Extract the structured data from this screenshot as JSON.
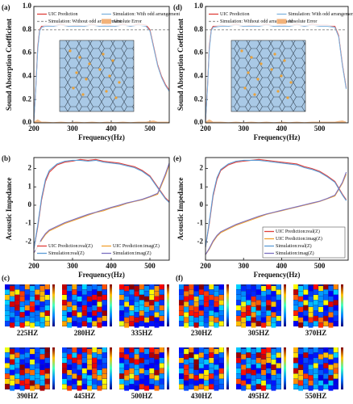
{
  "chart_data": [
    {
      "type": "line",
      "panel": "(a)",
      "x_label": "Frequency(Hz)",
      "y_label": "Sound Absorption Coefficient",
      "x": [
        200,
        205,
        210,
        215,
        220,
        230,
        250,
        270,
        290,
        310,
        330,
        350,
        370,
        390,
        410,
        430,
        450,
        470,
        490,
        500,
        510,
        520,
        530,
        540,
        550
      ],
      "xlim": [
        200,
        550
      ],
      "xticks": [
        200,
        300,
        400,
        500
      ],
      "ylim": [
        0,
        1.0
      ],
      "yticks": [
        {
          "value": 0,
          "label": "0.0"
        },
        0.2,
        0.4,
        0.6,
        0.8,
        {
          "value": 1,
          "label": "1.0"
        }
      ],
      "legend": "upper center",
      "legend_columns": 2,
      "series": [
        {
          "name": "UIC Prediction",
          "color": "#e0403a",
          "style": "solid",
          "values": [
            0.02,
            0.3,
            0.65,
            0.8,
            0.83,
            0.84,
            0.83,
            0.85,
            0.83,
            0.84,
            0.83,
            0.85,
            0.83,
            0.84,
            0.83,
            0.85,
            0.83,
            0.85,
            0.84,
            0.8,
            0.65,
            0.5,
            0.4,
            0.33,
            0.28
          ]
        },
        {
          "name": "Simulation: With odd arrangement",
          "color": "#7fb3de",
          "style": "solid",
          "values": [
            0.02,
            0.29,
            0.63,
            0.79,
            0.82,
            0.83,
            0.83,
            0.84,
            0.83,
            0.83,
            0.83,
            0.84,
            0.83,
            0.83,
            0.83,
            0.84,
            0.83,
            0.84,
            0.83,
            0.79,
            0.64,
            0.49,
            0.39,
            0.32,
            0.27
          ]
        },
        {
          "name": "Simulation: Without odd arrangement",
          "color": "#9a9a9a",
          "style": "dashed",
          "values": [
            0.8,
            0.8,
            0.8,
            0.8,
            0.8,
            0.8,
            0.8,
            0.8,
            0.8,
            0.8,
            0.8,
            0.8,
            0.8,
            0.8,
            0.8,
            0.8,
            0.8,
            0.8,
            0.8,
            0.8,
            0.8,
            0.8,
            0.8,
            0.8,
            0.8
          ]
        },
        {
          "name": "Absolute Error",
          "color": "#f2b27a",
          "style": "area",
          "values": [
            0.01,
            0.02,
            0.03,
            0.02,
            0.01,
            0.01,
            0.005,
            0.01,
            0.005,
            0.01,
            0.005,
            0.01,
            0.005,
            0.01,
            0.005,
            0.01,
            0.005,
            0.01,
            0.01,
            0.015,
            0.02,
            0.01,
            0.01,
            0.01,
            0.01
          ]
        }
      ]
    },
    {
      "type": "line",
      "panel": "(d)",
      "x_label": "Frequency(Hz)",
      "y_label": "Sound Absorption Coefficient",
      "x": [
        200,
        205,
        210,
        215,
        220,
        240,
        260,
        280,
        300,
        320,
        340,
        360,
        380,
        400,
        420,
        440,
        460,
        480,
        500,
        520,
        540,
        550,
        560,
        570
      ],
      "xlim": [
        200,
        575
      ],
      "xticks": [
        200,
        300,
        400,
        500
      ],
      "ylim": [
        0,
        1.0
      ],
      "yticks": [
        {
          "value": 0,
          "label": "0.0"
        },
        0.2,
        0.4,
        0.6,
        0.8,
        {
          "value": 1,
          "label": "1.0"
        }
      ],
      "legend": "upper center",
      "legend_columns": 2,
      "series": [
        {
          "name": "UIC Prediction",
          "color": "#e0403a",
          "style": "solid",
          "values": [
            0.02,
            0.3,
            0.65,
            0.8,
            0.83,
            0.84,
            0.83,
            0.85,
            0.83,
            0.84,
            0.83,
            0.85,
            0.83,
            0.84,
            0.83,
            0.85,
            0.83,
            0.85,
            0.84,
            0.84,
            0.83,
            0.75,
            0.5,
            0.3
          ]
        },
        {
          "name": "Simulation: With odd arrangement",
          "color": "#7fb3de",
          "style": "solid",
          "values": [
            0.02,
            0.29,
            0.63,
            0.79,
            0.82,
            0.83,
            0.83,
            0.84,
            0.83,
            0.83,
            0.83,
            0.84,
            0.83,
            0.83,
            0.83,
            0.84,
            0.83,
            0.84,
            0.83,
            0.83,
            0.82,
            0.74,
            0.49,
            0.29
          ]
        },
        {
          "name": "Simulation: Without odd arrangement",
          "color": "#9a9a9a",
          "style": "dashed",
          "values": [
            0.8,
            0.8,
            0.8,
            0.8,
            0.8,
            0.8,
            0.8,
            0.8,
            0.8,
            0.8,
            0.8,
            0.8,
            0.8,
            0.8,
            0.8,
            0.8,
            0.8,
            0.8,
            0.8,
            0.8,
            0.8,
            0.8,
            0.8,
            0.8
          ]
        },
        {
          "name": "Absolute Error",
          "color": "#f2b27a",
          "style": "area",
          "values": [
            0.01,
            0.02,
            0.03,
            0.02,
            0.01,
            0.01,
            0.005,
            0.01,
            0.005,
            0.01,
            0.005,
            0.01,
            0.005,
            0.01,
            0.005,
            0.01,
            0.005,
            0.01,
            0.01,
            0.01,
            0.01,
            0.015,
            0.02,
            0.01
          ]
        }
      ]
    },
    {
      "type": "line",
      "panel": "(b)",
      "x_label": "Frequency(Hz)",
      "y_label": "Acoustic Impedance",
      "x": [
        200,
        210,
        220,
        230,
        240,
        260,
        280,
        300,
        320,
        340,
        360,
        380,
        400,
        420,
        440,
        460,
        480,
        500,
        520,
        540,
        550
      ],
      "xlim": [
        200,
        550
      ],
      "xticks": [
        200,
        300,
        400,
        500
      ],
      "ylim": [
        -3,
        2.6
      ],
      "yticks": [
        -2,
        -1,
        0,
        1,
        2
      ],
      "legend": "lower right",
      "legend_columns": 2,
      "series": [
        {
          "name": "UIC Prediction:real(Z)",
          "color": "#e0403a",
          "style": "solid",
          "values": [
            -2.4,
            -1.2,
            0.3,
            1.3,
            1.8,
            2.2,
            2.35,
            2.4,
            2.5,
            2.45,
            2.5,
            2.4,
            2.35,
            2.3,
            2.2,
            2.1,
            1.9,
            1.6,
            1.0,
            0.4,
            0.2
          ]
        },
        {
          "name": "UIC Prediction:imag(Z)",
          "color": "#f0a030",
          "style": "solid",
          "values": [
            -2.6,
            -2.3,
            -1.9,
            -1.6,
            -1.4,
            -1.2,
            -1.0,
            -0.85,
            -0.7,
            -0.55,
            -0.4,
            -0.3,
            -0.15,
            -0.05,
            0.1,
            0.2,
            0.3,
            0.45,
            0.6,
            1.6,
            2.2
          ]
        },
        {
          "name": "Simulation:real(Z)",
          "color": "#5b9bd5",
          "style": "solid",
          "values": [
            -2.4,
            -1.1,
            0.4,
            1.4,
            1.9,
            2.25,
            2.4,
            2.45,
            2.45,
            2.4,
            2.45,
            2.35,
            2.3,
            2.25,
            2.15,
            2.05,
            1.85,
            1.55,
            0.95,
            0.35,
            0.15
          ]
        },
        {
          "name": "Simulation:imag(Z)",
          "color": "#7b6fc0",
          "style": "solid",
          "values": [
            -2.6,
            -2.25,
            -1.85,
            -1.55,
            -1.35,
            -1.15,
            -0.95,
            -0.8,
            -0.65,
            -0.5,
            -0.38,
            -0.25,
            -0.12,
            0.0,
            0.12,
            0.22,
            0.32,
            0.47,
            0.65,
            1.7,
            2.3
          ]
        }
      ]
    },
    {
      "type": "line",
      "panel": "(e)",
      "x_label": "Frequency(Hz)",
      "y_label": "Acoustic Impedance",
      "x": [
        200,
        210,
        220,
        230,
        240,
        260,
        280,
        300,
        320,
        340,
        360,
        380,
        400,
        420,
        440,
        460,
        480,
        500,
        520,
        540,
        560,
        570
      ],
      "xlim": [
        200,
        575
      ],
      "xticks": [
        200,
        300,
        400,
        500
      ],
      "ylim": [
        -3,
        2.6
      ],
      "yticks": [
        -2,
        -1,
        0,
        1,
        2
      ],
      "legend": "lower right",
      "legend_columns": 1,
      "series": [
        {
          "name": "UIC Prediction:real(Z)",
          "color": "#e0403a",
          "style": "solid",
          "values": [
            -2.3,
            -1.0,
            0.5,
            1.4,
            1.9,
            2.2,
            2.35,
            2.4,
            2.45,
            2.5,
            2.45,
            2.4,
            2.35,
            2.3,
            2.25,
            2.1,
            2.0,
            1.85,
            1.6,
            1.3,
            0.6,
            0.3
          ]
        },
        {
          "name": "UIC Prediction:imag(Z)",
          "color": "#f0a030",
          "style": "solid",
          "values": [
            -2.7,
            -2.4,
            -2.0,
            -1.7,
            -1.5,
            -1.3,
            -1.1,
            -0.95,
            -0.8,
            -0.65,
            -0.5,
            -0.4,
            -0.3,
            -0.2,
            -0.1,
            0.0,
            0.1,
            0.2,
            0.35,
            0.5,
            1.2,
            1.7
          ]
        },
        {
          "name": "Simulation:real(Z)",
          "color": "#5b9bd5",
          "style": "solid",
          "values": [
            -2.3,
            -0.9,
            0.6,
            1.5,
            1.95,
            2.25,
            2.4,
            2.45,
            2.45,
            2.45,
            2.4,
            2.35,
            2.3,
            2.25,
            2.2,
            2.05,
            1.95,
            1.8,
            1.55,
            1.25,
            0.55,
            0.25
          ]
        },
        {
          "name": "Simulation:imag(Z)",
          "color": "#7b6fc0",
          "style": "solid",
          "values": [
            -2.7,
            -2.35,
            -1.95,
            -1.65,
            -1.45,
            -1.25,
            -1.05,
            -0.9,
            -0.75,
            -0.6,
            -0.48,
            -0.38,
            -0.28,
            -0.18,
            -0.08,
            0.02,
            0.12,
            0.22,
            0.37,
            0.55,
            1.25,
            1.8
          ]
        }
      ]
    }
  ],
  "heatmaps": [
    {
      "panel": "(c)",
      "labels": [
        "225HZ",
        "280HZ",
        "335HZ",
        "390HZ",
        "445HZ",
        "500HZ"
      ]
    },
    {
      "panel": "(f)",
      "labels": [
        "230HZ",
        "305HZ",
        "370HZ",
        "430HZ",
        "495HZ",
        "550HZ"
      ]
    }
  ]
}
